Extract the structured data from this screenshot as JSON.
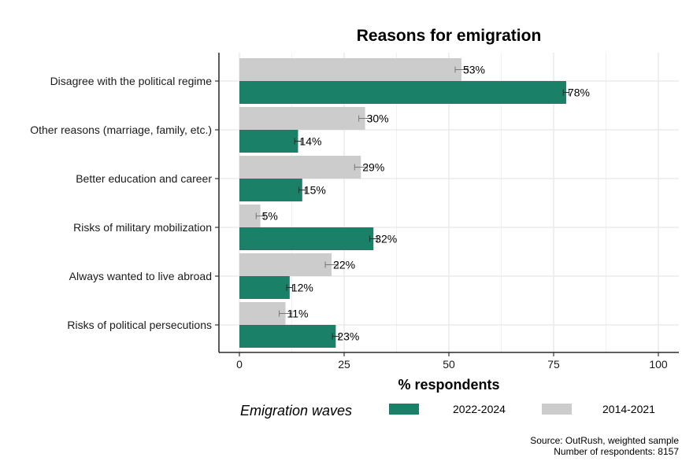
{
  "chart_data": {
    "type": "bar",
    "orientation": "horizontal",
    "title": "Reasons for emigration",
    "xlabel": "% respondents",
    "ylabel": "",
    "xlim": [
      0,
      100
    ],
    "xticks": [
      0,
      25,
      50,
      75,
      100
    ],
    "grid": true,
    "categories": [
      "Disagree with the political regime",
      "Other reasons (marriage, family, etc.)",
      "Better education and career",
      "Risks of military mobilization",
      "Always wanted to live abroad",
      "Risks of political persecutions"
    ],
    "series": [
      {
        "name": "2014-2021",
        "color": "#cccccc",
        "values": [
          53,
          30,
          29,
          5,
          22,
          11
        ],
        "labels": [
          "53%",
          "30%",
          "29%",
          "5%",
          "22%",
          "11%"
        ],
        "error": [
          1.5,
          1.5,
          1.5,
          1.0,
          1.5,
          1.5
        ]
      },
      {
        "name": "2022-2024",
        "color": "#1b8068",
        "values": [
          78,
          14,
          15,
          32,
          12,
          23
        ],
        "labels": [
          "78%",
          "14%",
          "15%",
          "32%",
          "12%",
          "23%"
        ],
        "error": [
          0.7,
          0.8,
          0.8,
          0.9,
          0.7,
          0.8
        ]
      }
    ],
    "legend": {
      "title": "Emigration waves",
      "position": "bottom",
      "order": [
        "2022-2024",
        "2014-2021"
      ]
    },
    "source_lines": [
      "Source: OutRush, weighted sample",
      "Number of respondents: 8157"
    ]
  }
}
